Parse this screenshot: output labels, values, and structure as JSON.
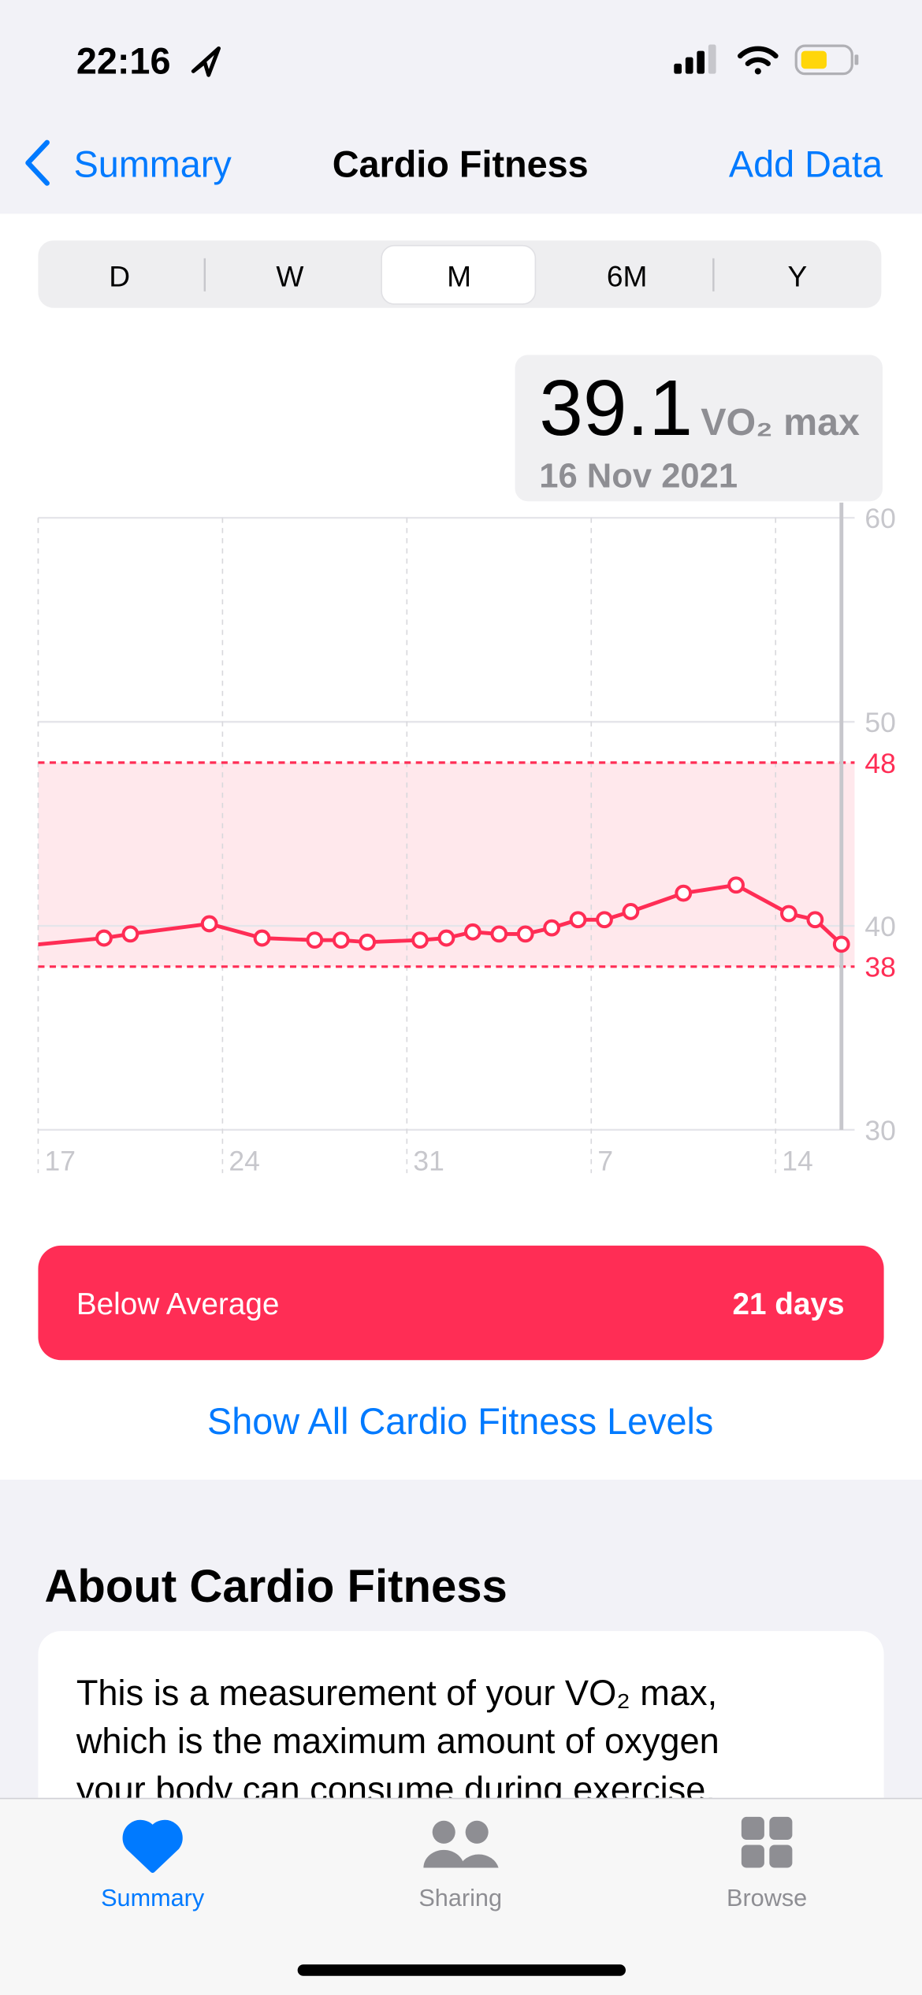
{
  "status_bar": {
    "time": "22:16"
  },
  "nav": {
    "back": "Summary",
    "title": "Cardio Fitness",
    "action": "Add Data"
  },
  "segments": [
    "D",
    "W",
    "M",
    "6M",
    "Y"
  ],
  "chart_data": {
    "type": "line",
    "callout": {
      "value": 39.1,
      "unit": "VO₂ max",
      "date": "16 Nov 2021"
    },
    "x": [
      -2,
      2,
      3,
      6,
      8,
      10,
      11,
      12,
      14,
      15,
      16,
      17,
      18,
      19,
      20,
      21,
      22,
      24,
      26,
      28,
      29,
      30
    ],
    "values": [
      38.9,
      39.4,
      39.6,
      40.1,
      39.4,
      39.3,
      39.3,
      39.2,
      39.3,
      39.4,
      39.7,
      39.6,
      39.6,
      39.9,
      40.3,
      40.3,
      40.7,
      41.6,
      42.0,
      40.6,
      40.3,
      39.1
    ],
    "color": "#ff2d55",
    "xlim": [
      -0.5,
      30.5
    ],
    "xticks": [
      {
        "value": -0.5,
        "label": "17"
      },
      {
        "value": 6.5,
        "label": "24"
      },
      {
        "value": 13.5,
        "label": "31"
      },
      {
        "value": 20.5,
        "label": "7"
      },
      {
        "value": 27.5,
        "label": "14"
      }
    ],
    "ylim": [
      30,
      60
    ],
    "yticks": [
      30,
      40,
      50,
      60
    ],
    "grid": true,
    "reference_band": {
      "range": [
        38,
        48
      ],
      "color": "#ff2d55"
    }
  },
  "status_card": {
    "label": "Below Average",
    "duration": "21 days"
  },
  "link": "Show All Cardio Fitness Levels",
  "about": {
    "heading": "About Cardio Fitness",
    "lines": [
      "This is a measurement of your VO₂ max,",
      "which is the maximum amount of oxygen",
      "your body can consume during exercise."
    ]
  },
  "tabs": [
    "Summary",
    "Sharing",
    "Browse"
  ]
}
